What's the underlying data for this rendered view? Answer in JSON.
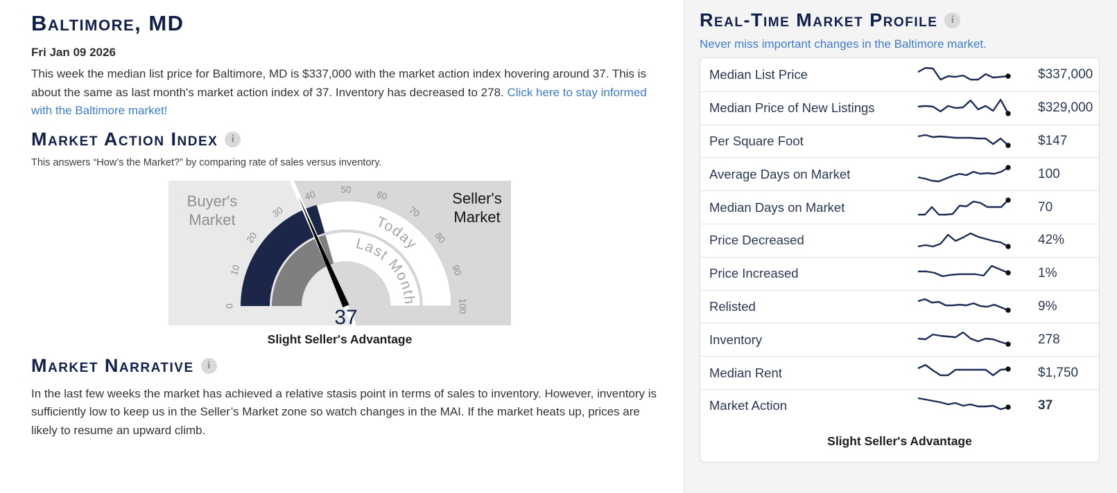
{
  "icons": {
    "info_glyph": "i"
  },
  "left": {
    "title": "Baltimore, MD",
    "date": "Fri Jan 09 2026",
    "summary_text": "This week the median list price for Baltimore, MD is $337,000 with the market action index hovering around 37. This is about the same as last month's market action index of 37. Inventory has decreased to 278. ",
    "summary_link": "Click here to stay informed with the Baltimore market!",
    "mai_heading": "Market Action Index",
    "mai_subtitle": "This answers “How’s the Market?” by comparing rate of sales versus inventory.",
    "narrative_heading": "Market Narrative",
    "narrative_text": "In the last few weeks the market has achieved a relative stasis point in terms of sales to inventory. However, inventory is sufficiently low to keep us in the Seller’s Market zone so watch changes in the MAI. If the market heats up, prices are likely to resume an upward climb."
  },
  "gauge": {
    "value": 37,
    "value_label": "37",
    "last_month_value": 37,
    "min": 0,
    "max": 100,
    "arc_end": 41,
    "ticks": [
      0,
      10,
      20,
      30,
      40,
      50,
      60,
      70,
      80,
      90,
      100
    ],
    "buyers_label": "Buyer's Market",
    "sellers_label": "Seller's Market",
    "ring_labels": {
      "inner": "Last Month",
      "outer": "Today"
    },
    "caption": "Slight Seller's Advantage",
    "colors": {
      "bg_dark": "#d8d8d8",
      "bg_light": "#e9e9e9",
      "today_arc": "#1b2649",
      "last_month_arc": "#7f7f7f",
      "tick_text": "#8f8f8f",
      "ring_text": "#a5a5a5"
    }
  },
  "sidebar": {
    "heading": "Real-Time Market Profile",
    "subheading_link": "Never miss important changes in the Baltimore market.",
    "caption": "Slight Seller's Advantage",
    "spark_color": "#1c2b55",
    "link_color": "#3d7cc9",
    "rows": [
      {
        "label": "Median List Price",
        "value": "$337,000",
        "bold": false,
        "spark": [
          10,
          4,
          5,
          21,
          16,
          17,
          15,
          21,
          21,
          13,
          18,
          17,
          16
        ]
      },
      {
        "label": "Median Price of New Listings",
        "value": "$329,000",
        "bold": false,
        "spark": [
          12,
          11,
          12,
          19,
          11,
          14,
          13,
          3,
          16,
          11,
          18,
          2,
          22
        ]
      },
      {
        "label": "Per Square Foot",
        "value": "$147",
        "bold": false,
        "spark": [
          7,
          5,
          8,
          7,
          8,
          9,
          9,
          9,
          10,
          10,
          18,
          10,
          20
        ]
      },
      {
        "label": "Average Days on Market",
        "value": "100",
        "bold": false,
        "spark": [
          18,
          20,
          23,
          24,
          20,
          16,
          13,
          15,
          10,
          13,
          12,
          13,
          10,
          4
        ]
      },
      {
        "label": "Median Days on Market",
        "value": "70",
        "bold": false,
        "spark": [
          24,
          24,
          13,
          24,
          24,
          23,
          11,
          12,
          5,
          7,
          13,
          13,
          13,
          3
        ]
      },
      {
        "label": "Price Decreased",
        "value": "42%",
        "bold": false,
        "spark": [
          23,
          21,
          23,
          19,
          6,
          15,
          10,
          4,
          9,
          12,
          15,
          17,
          23
        ]
      },
      {
        "label": "Price Increased",
        "value": "1%",
        "bold": false,
        "spark": [
          11,
          11,
          13,
          18,
          16,
          15,
          15,
          15,
          17,
          3,
          8,
          13
        ]
      },
      {
        "label": "Relisted",
        "value": "9%",
        "bold": false,
        "spark": [
          6,
          3,
          8,
          7,
          12,
          12,
          11,
          12,
          9,
          13,
          14,
          11,
          15,
          19
        ]
      },
      {
        "label": "Inventory",
        "value": "278",
        "bold": false,
        "spark": [
          12,
          13,
          6,
          8,
          9,
          10,
          3,
          12,
          16,
          12,
          13,
          17,
          20
        ]
      },
      {
        "label": "Median Rent",
        "value": "$1,750",
        "bold": false,
        "spark": [
          7,
          2,
          10,
          17,
          17,
          9,
          9,
          9,
          9,
          9,
          17,
          9,
          8
        ]
      },
      {
        "label": "Market Action",
        "value": "37",
        "bold": true,
        "spark": [
          3,
          5,
          7,
          9,
          12,
          10,
          14,
          12,
          15,
          15,
          14,
          19,
          16
        ]
      }
    ]
  },
  "chart_data": [
    {
      "type": "gauge",
      "title": "Market Action Index",
      "min": 0,
      "max": 100,
      "tick_labels": [
        0,
        10,
        20,
        30,
        40,
        50,
        60,
        70,
        80,
        90,
        100
      ],
      "today_value": 37,
      "last_month_value": 37,
      "zones": [
        "Buyer's Market",
        "Seller's Market"
      ],
      "caption": "Slight Seller's Advantage"
    }
  ]
}
